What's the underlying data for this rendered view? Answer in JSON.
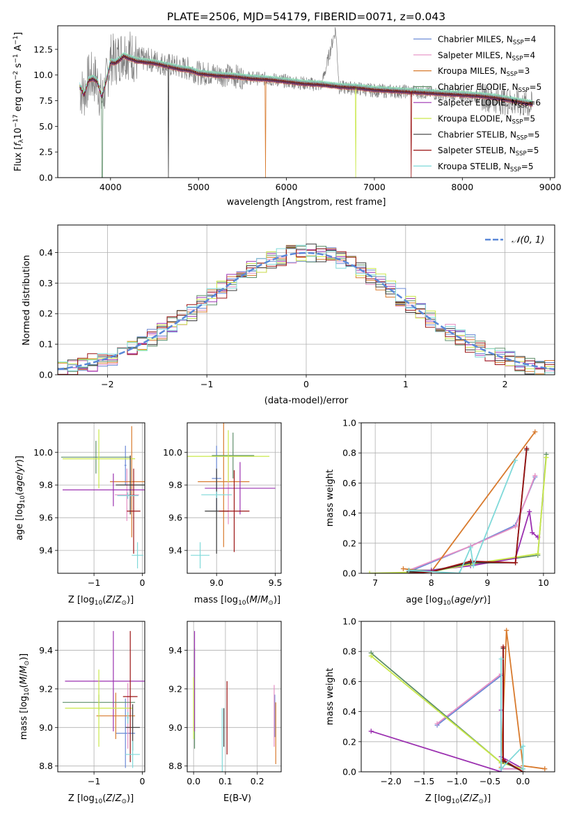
{
  "chart_data": [
    {
      "id": "spectrum",
      "type": "line",
      "title": "PLATE=2506, MJD=54179, FIBERID=0071, z=0.043",
      "xlabel": "wavelength [Angstrom, rest frame]",
      "ylabel": "Flux [fλ10⁻¹⁷ erg cm⁻² s⁻¹ A⁻¹]",
      "xlim": [
        3400,
        9050
      ],
      "ylim": [
        0,
        14.8
      ],
      "xticks": [
        4000,
        5000,
        6000,
        7000,
        8000,
        9000
      ],
      "yticks": [
        0.0,
        2.5,
        5.0,
        7.5,
        10.0,
        12.5
      ],
      "grid": false,
      "legend": "right",
      "data_series": {
        "name": "data",
        "color": "#808080",
        "x": [
          3650,
          3700,
          3750,
          3800,
          3850,
          3900,
          3950,
          4000,
          4050,
          4100,
          4150,
          4200,
          4300,
          4400,
          4500,
          4600,
          4700,
          4800,
          4900,
          5000,
          5200,
          5400,
          5600,
          5800,
          6000,
          6200,
          6400,
          6560,
          6600,
          6800,
          7000,
          7200,
          7400,
          7600,
          7800,
          8000,
          8200,
          8400,
          8600,
          8800
        ],
        "y": [
          8.6,
          8.2,
          9.6,
          9.8,
          9.3,
          7.4,
          9.2,
          11.6,
          11.4,
          11.8,
          12.3,
          12.1,
          11.6,
          11.5,
          11.4,
          11.1,
          10.9,
          10.7,
          10.6,
          10.2,
          10.1,
          9.9,
          9.7,
          9.6,
          9.4,
          9.2,
          9.0,
          14.5,
          8.8,
          8.7,
          8.5,
          8.4,
          8.4,
          8.3,
          8.1,
          8.1,
          7.9,
          7.6,
          7.3,
          7.0
        ]
      },
      "model_x": [
        3650,
        3700,
        3750,
        3800,
        3850,
        3900,
        3950,
        4000,
        4050,
        4100,
        4150,
        4200,
        4300,
        4400,
        4500,
        4600,
        4700,
        4800,
        4900,
        5000,
        5200,
        5400,
        5600,
        5800,
        6000,
        6200,
        6400,
        6600,
        6800,
        7000,
        7200,
        7400,
        7600,
        7800,
        8000,
        8200,
        8400,
        8600,
        8800
      ],
      "model_y": [
        8.9,
        8.1,
        9.5,
        9.7,
        9.4,
        7.9,
        9.4,
        11.3,
        11.2,
        11.5,
        11.9,
        11.7,
        11.4,
        11.3,
        11.2,
        11.0,
        10.8,
        10.6,
        10.5,
        10.2,
        10.0,
        9.9,
        9.7,
        9.6,
        9.4,
        9.2,
        9.1,
        8.9,
        8.8,
        8.6,
        8.5,
        8.4,
        8.3,
        8.2,
        8.1,
        8.0,
        7.8,
        7.5,
        7.2
      ],
      "series": [
        {
          "name": "Chabrier MILES, N_SSP=4",
          "label": "Chabrier MILES, N",
          "sub": "SSP",
          "count": "=4",
          "color": "#6b8ad6"
        },
        {
          "name": "Salpeter MILES, N_SSP=4",
          "label": "Salpeter MILES, N",
          "sub": "SSP",
          "count": "=4",
          "color": "#e58fc4"
        },
        {
          "name": "Kroupa MILES, N_SSP=3",
          "label": "Kroupa MILES, N",
          "sub": "SSP",
          "count": "=3",
          "color": "#d87a2d"
        },
        {
          "name": "Chabrier ELODIE, N_SSP=5",
          "label": "Chabrier ELODIE, N",
          "sub": "SSP",
          "count": "=5",
          "color": "#5f8f6a"
        },
        {
          "name": "Salpeter ELODIE, N_SSP=6",
          "label": "Salpeter ELODIE, N",
          "sub": "SSP",
          "count": "=6",
          "color": "#9b30b0"
        },
        {
          "name": "Kroupa ELODIE, N_SSP=5",
          "label": "Kroupa ELODIE, N",
          "sub": "SSP",
          "count": "=5",
          "color": "#c9e84a"
        },
        {
          "name": "Chabrier STELIB, N_SSP=5",
          "label": "Chabrier STELIB, N",
          "sub": "SSP",
          "count": "=5",
          "color": "#3a3a3a"
        },
        {
          "name": "Salpeter STELIB, N_SSP=5",
          "label": "Salpeter STELIB, N",
          "sub": "SSP",
          "count": "=5",
          "color": "#9a1212"
        },
        {
          "name": "Kroupa STELIB, N_SSP=5",
          "label": "Kroupa STELIB, N",
          "sub": "SSP",
          "count": "=5",
          "color": "#7fd9d9"
        }
      ],
      "model_offsets": [
        0.0,
        0.1,
        -0.15,
        0.05,
        -0.1,
        0.15,
        -0.05,
        0.08,
        0.2
      ],
      "dropouts": [
        {
          "x": 3905,
          "series": 3
        },
        {
          "x": 4660,
          "series": 6
        },
        {
          "x": 5760,
          "series": 2
        },
        {
          "x": 6790,
          "series": 5
        },
        {
          "x": 7420,
          "series": 7
        }
      ]
    },
    {
      "id": "residuals",
      "type": "histogram",
      "xlabel": "(data-model)/error",
      "ylabel": "Normed distribution",
      "xlim": [
        -2.5,
        2.5
      ],
      "ylim": [
        0,
        0.49
      ],
      "xticks": [
        -2,
        -1,
        0,
        1,
        2
      ],
      "yticks": [
        0.0,
        0.1,
        0.2,
        0.3,
        0.4
      ],
      "grid": true,
      "legend": "top-right",
      "reference": {
        "name": "N(0,1)",
        "label": "𝒩(0, 1)",
        "color": "#5a88d8"
      }
    },
    {
      "id": "age-vs-Z",
      "type": "scatter",
      "xlabel": "Z [log10(Z/Z☉)]",
      "ylabel": "age [log10(age/yr)]",
      "xlim": [
        -1.75,
        0.05
      ],
      "ylim": [
        9.26,
        10.18
      ],
      "xticks": [
        -1,
        0
      ],
      "yticks": [
        9.4,
        9.6,
        9.8,
        10.0
      ],
      "grid": true,
      "points": [
        {
          "x": -0.35,
          "y": 9.92,
          "xerr": 0.02,
          "yerr": 0.12,
          "series": 0
        },
        {
          "x": -0.32,
          "y": 9.74,
          "xerr": 0.25,
          "yerr": 0.16,
          "series": 1
        },
        {
          "x": -0.22,
          "y": 9.82,
          "xerr": 0.45,
          "yerr": 0.34,
          "series": 2
        },
        {
          "x": -0.96,
          "y": 9.97,
          "xerr": 0.72,
          "yerr": 0.1,
          "series": 3
        },
        {
          "x": -0.6,
          "y": 9.77,
          "xerr": 1.05,
          "yerr": 0.1,
          "series": 4
        },
        {
          "x": -0.9,
          "y": 9.96,
          "xerr": 0.75,
          "yerr": 0.18,
          "series": 5
        },
        {
          "x": -0.25,
          "y": 9.8,
          "xerr": 0.3,
          "yerr": 0.18,
          "series": 6
        },
        {
          "x": -0.18,
          "y": 9.64,
          "xerr": 0.14,
          "yerr": 0.26,
          "series": 7
        },
        {
          "x": -0.1,
          "y": 9.37,
          "xerr": 0.12,
          "yerr": 0.08,
          "series": 8
        },
        {
          "x": -0.3,
          "y": 9.735,
          "xerr": 0.22,
          "yerr": 0.02,
          "series": 8
        }
      ]
    },
    {
      "id": "age-vs-mass",
      "type": "scatter",
      "xlabel": "mass [log10(M/M☉)]",
      "ylabel": "",
      "xlim": [
        8.75,
        9.55
      ],
      "ylim": [
        9.26,
        10.18
      ],
      "xticks": [
        9.0,
        9.5
      ],
      "yticks": [
        9.4,
        9.6,
        9.8,
        10.0
      ],
      "grid": true,
      "points": [
        {
          "x": 9.0,
          "y": 9.84,
          "xerr": 0.04,
          "yerr": 0.2,
          "series": 0
        },
        {
          "x": 9.1,
          "y": 9.78,
          "xerr": 0.02,
          "yerr": 0.22,
          "series": 1
        },
        {
          "x": 9.06,
          "y": 9.82,
          "xerr": 0.22,
          "yerr": 0.4,
          "series": 2
        },
        {
          "x": 9.14,
          "y": 9.98,
          "xerr": 0.18,
          "yerr": 0.14,
          "series": 3
        },
        {
          "x": 9.2,
          "y": 9.78,
          "xerr": 0.3,
          "yerr": 0.16,
          "series": 4
        },
        {
          "x": 9.1,
          "y": 9.975,
          "xerr": 0.35,
          "yerr": 0.16,
          "series": 5
        },
        {
          "x": 9.0,
          "y": 9.64,
          "xerr": 0.1,
          "yerr": 0.26,
          "series": 6
        },
        {
          "x": 9.15,
          "y": 9.64,
          "xerr": 0.13,
          "yerr": 0.25,
          "series": 7
        },
        {
          "x": 8.86,
          "y": 9.37,
          "xerr": 0.08,
          "yerr": 0.08,
          "series": 8
        },
        {
          "x": 9.0,
          "y": 9.74,
          "xerr": 0.13,
          "yerr": 0.02,
          "series": 8
        }
      ]
    },
    {
      "id": "weight-vs-age",
      "type": "line",
      "xlabel": "age [log10(age/yr)]",
      "ylabel": "mass weight",
      "xlim": [
        6.75,
        10.2
      ],
      "ylim": [
        0,
        1.0
      ],
      "xticks": [
        7,
        8,
        9,
        10
      ],
      "yticks": [
        0.0,
        0.2,
        0.4,
        0.6,
        0.8,
        1.0
      ],
      "grid": true,
      "lines": [
        {
          "series": 0,
          "x": [
            7.6,
            8.7,
            9.5,
            9.85
          ],
          "y": [
            0.01,
            0.18,
            0.32,
            0.64
          ]
        },
        {
          "series": 1,
          "x": [
            7.6,
            8.7,
            9.5,
            9.85
          ],
          "y": [
            0.02,
            0.18,
            0.31,
            0.65
          ]
        },
        {
          "series": 2,
          "x": [
            7.5,
            8.0,
            9.85
          ],
          "y": [
            0.03,
            0.01,
            0.94
          ]
        },
        {
          "series": 3,
          "x": [
            7.6,
            8.0,
            8.7,
            9.9,
            10.05
          ],
          "y": [
            0.02,
            0.02,
            0.06,
            0.12,
            0.79
          ]
        },
        {
          "series": 4,
          "x": [
            7.6,
            8.0,
            8.7,
            9.5,
            9.75,
            9.8,
            9.9
          ],
          "y": [
            0.01,
            0.02,
            0.05,
            0.1,
            0.41,
            0.27,
            0.24
          ]
        },
        {
          "series": 5,
          "x": [
            6.9,
            8.0,
            8.7,
            9.9,
            10.05
          ],
          "y": [
            0.0,
            0.01,
            0.06,
            0.13,
            0.77
          ]
        },
        {
          "series": 6,
          "x": [
            7.6,
            8.0,
            8.7,
            9.5,
            9.7
          ],
          "y": [
            0.01,
            0.01,
            0.07,
            0.07,
            0.82
          ]
        },
        {
          "series": 7,
          "x": [
            7.6,
            8.0,
            8.7,
            9.5,
            9.7
          ],
          "y": [
            0.0,
            0.01,
            0.08,
            0.07,
            0.83
          ]
        },
        {
          "series": 8,
          "x": [
            7.6,
            8.5,
            8.7,
            8.75,
            9.5
          ],
          "y": [
            0.02,
            0.0,
            0.17,
            0.05,
            0.75
          ]
        }
      ]
    },
    {
      "id": "mass-vs-Z",
      "type": "scatter",
      "xlabel": "Z [log10(Z/Z☉)]",
      "ylabel": "mass [log10(M/M☉)]",
      "xlim": [
        -1.75,
        0.05
      ],
      "ylim": [
        8.77,
        9.55
      ],
      "xticks": [
        -1,
        0
      ],
      "yticks": [
        8.8,
        9.0,
        9.2,
        9.4
      ],
      "grid": true,
      "points": [
        {
          "x": -0.35,
          "y": 8.97,
          "xerr": 0.2,
          "yerr": 0.18,
          "series": 0
        },
        {
          "x": -0.3,
          "y": 9.06,
          "xerr": 0.02,
          "yerr": 0.17,
          "series": 1
        },
        {
          "x": -0.55,
          "y": 9.06,
          "xerr": 0.4,
          "yerr": 0.12,
          "series": 2
        },
        {
          "x": -0.9,
          "y": 9.13,
          "xerr": 0.75,
          "yerr": 0.04,
          "series": 3
        },
        {
          "x": -0.6,
          "y": 9.24,
          "xerr": 1.0,
          "yerr": 0.26,
          "series": 4
        },
        {
          "x": -0.9,
          "y": 9.1,
          "xerr": 0.7,
          "yerr": 0.2,
          "series": 5
        },
        {
          "x": -0.2,
          "y": 9.0,
          "xerr": 0.15,
          "yerr": 0.12,
          "series": 6
        },
        {
          "x": -0.25,
          "y": 9.16,
          "xerr": 0.15,
          "yerr": 0.34,
          "series": 7
        },
        {
          "x": -0.2,
          "y": 8.86,
          "xerr": 0.15,
          "yerr": 0.07,
          "series": 8
        },
        {
          "x": -0.3,
          "y": 9.05,
          "xerr": 0.02,
          "yerr": 0.03,
          "series": 8
        }
      ]
    },
    {
      "id": "mass-vs-EBV",
      "type": "scatter",
      "xlabel": "E(B-V)",
      "ylabel": "",
      "xlim": [
        -0.02,
        0.275
      ],
      "ylim": [
        8.77,
        9.55
      ],
      "xticks": [
        0.0,
        0.1,
        0.2
      ],
      "yticks": [
        8.8,
        9.0,
        9.2,
        9.4
      ],
      "grid": true,
      "points": [
        {
          "x": 0.255,
          "y": 9.06,
          "xerr": 0,
          "yerr": 0.11,
          "series": 0
        },
        {
          "x": 0.253,
          "y": 9.06,
          "xerr": 0,
          "yerr": 0.16,
          "series": 1
        },
        {
          "x": 0.258,
          "y": 8.97,
          "xerr": 0,
          "yerr": 0.16,
          "series": 2
        },
        {
          "x": 0.003,
          "y": 9.15,
          "xerr": 0,
          "yerr": 0.26,
          "series": 3
        },
        {
          "x": 0.003,
          "y": 9.24,
          "xerr": 0,
          "yerr": 0.26,
          "series": 4
        },
        {
          "x": 0.0,
          "y": 9.1,
          "xerr": 0,
          "yerr": 0.16,
          "series": 5
        },
        {
          "x": 0.095,
          "y": 9.0,
          "xerr": 0,
          "yerr": 0.1,
          "series": 6
        },
        {
          "x": 0.105,
          "y": 9.05,
          "xerr": 0,
          "yerr": 0.19,
          "series": 7
        },
        {
          "x": 0.09,
          "y": 8.92,
          "xerr": 0,
          "yerr": 0.18,
          "series": 8
        }
      ]
    },
    {
      "id": "weight-vs-Z",
      "type": "line",
      "xlabel": "Z [log10(Z/Z☉)]",
      "ylabel": "mass weight",
      "xlim": [
        -2.45,
        0.48
      ],
      "ylim": [
        0,
        1.0
      ],
      "xticks": [
        -2.0,
        -1.5,
        -1.0,
        -0.5,
        0.0
      ],
      "yticks": [
        0.0,
        0.2,
        0.4,
        0.6,
        0.8,
        1.0
      ],
      "grid": true,
      "lines": [
        {
          "series": 0,
          "x": [
            -1.3,
            -0.33,
            -0.33,
            0.0
          ],
          "y": [
            0.31,
            0.64,
            0.02,
            0.02
          ]
        },
        {
          "series": 1,
          "x": [
            -1.3,
            -0.33,
            -0.33,
            0.0
          ],
          "y": [
            0.32,
            0.65,
            0.02,
            0.02
          ]
        },
        {
          "series": 2,
          "x": [
            -0.33,
            -0.25,
            0.0,
            0.33
          ],
          "y": [
            0.03,
            0.94,
            0.04,
            0.02
          ]
        },
        {
          "series": 3,
          "x": [
            -2.3,
            -0.33,
            0.0
          ],
          "y": [
            0.79,
            0.06,
            0.02
          ]
        },
        {
          "series": 4,
          "x": [
            -2.3,
            -0.33,
            -0.33,
            -0.33,
            0.0
          ],
          "y": [
            0.27,
            0.0,
            0.41,
            0.1,
            0.02
          ]
        },
        {
          "series": 5,
          "x": [
            -2.3,
            -0.33,
            0.0
          ],
          "y": [
            0.77,
            0.06,
            0.02
          ]
        },
        {
          "series": 6,
          "x": [
            -0.3,
            -0.3,
            0.0
          ],
          "y": [
            0.82,
            0.07,
            0.0
          ]
        },
        {
          "series": 7,
          "x": [
            -0.3,
            -0.3,
            0.0
          ],
          "y": [
            0.83,
            0.08,
            0.0
          ]
        },
        {
          "series": 8,
          "x": [
            -0.33,
            -0.33,
            0.0,
            0.0
          ],
          "y": [
            0.75,
            0.02,
            0.17,
            0.02
          ]
        }
      ]
    }
  ]
}
